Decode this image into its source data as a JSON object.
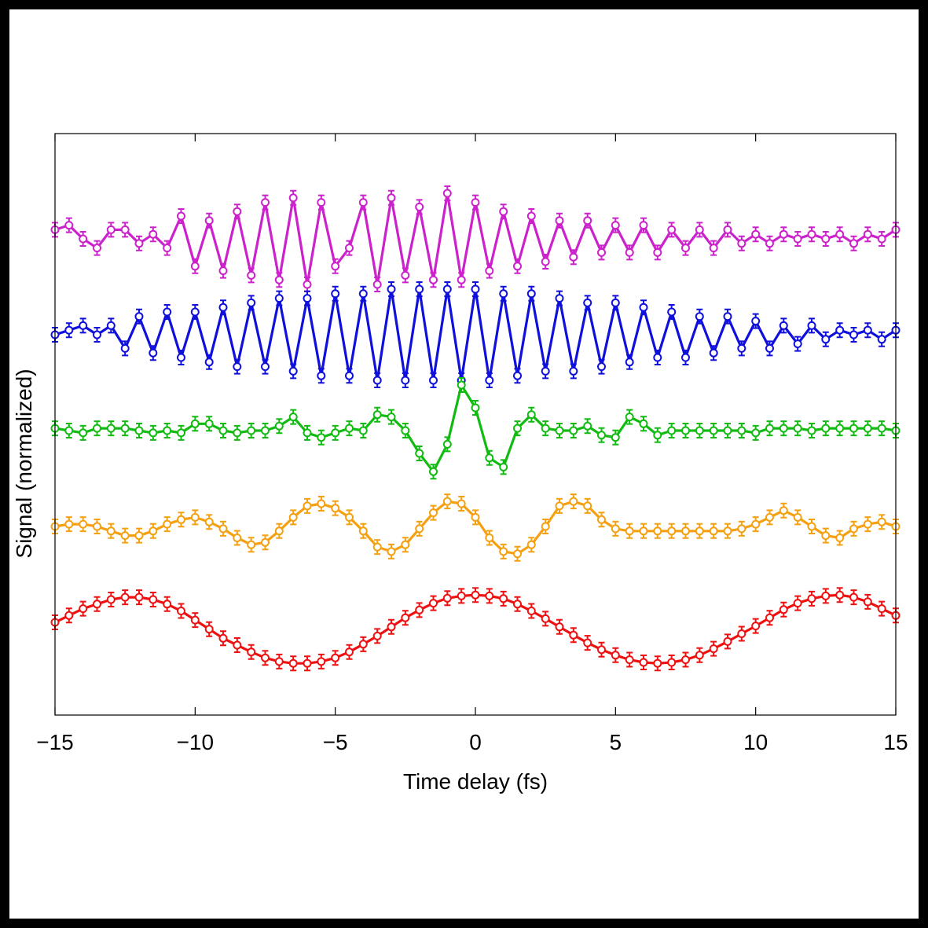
{
  "chart_data": {
    "type": "line",
    "xlabel": "Time delay (fs)",
    "ylabel": "Signal (normalized)",
    "xlim": [
      -15,
      15
    ],
    "xticks": [
      -15,
      -10,
      -5,
      0,
      5,
      10,
      15
    ],
    "xtick_labels": [
      "−15",
      "−10",
      "−5",
      "0",
      "5",
      "10",
      "15"
    ],
    "grid": false,
    "legend": "none",
    "markers": "open circles with error bars",
    "series": [
      {
        "color": "#cc22cc",
        "offset": 4,
        "x": [
          -15,
          -14.5,
          -14,
          -13.5,
          -13,
          -12.5,
          -12,
          -11.5,
          -11,
          -10.5,
          -10,
          -9.5,
          -9,
          -8.5,
          -8,
          -7.5,
          -7,
          -6.5,
          -6,
          -5.5,
          -5,
          -4.5,
          -4,
          -3.5,
          -3,
          -2.5,
          -2,
          -1.5,
          -1,
          -0.5,
          0,
          0.5,
          1,
          1.5,
          2,
          2.5,
          3,
          3.5,
          4,
          4.5,
          5,
          5.5,
          6,
          6.5,
          7,
          7.5,
          8,
          8.5,
          9,
          9.5,
          10,
          10.5,
          11,
          11.5,
          12,
          12.5,
          13,
          13.5,
          14,
          14.5,
          15
        ],
        "y": [
          0.2,
          0.3,
          0.0,
          -0.2,
          0.2,
          0.2,
          -0.1,
          0.1,
          -0.2,
          0.5,
          -0.6,
          0.4,
          -0.7,
          0.6,
          -0.8,
          0.8,
          -0.9,
          0.9,
          -1.0,
          0.8,
          -0.6,
          -0.2,
          0.8,
          -1.0,
          0.9,
          -0.8,
          0.7,
          -0.9,
          1.0,
          -0.9,
          0.8,
          -0.7,
          0.6,
          -0.6,
          0.5,
          -0.5,
          0.4,
          -0.4,
          0.4,
          -0.3,
          0.3,
          -0.3,
          0.3,
          -0.3,
          0.2,
          -0.2,
          0.2,
          -0.2,
          0.2,
          -0.1,
          0.1,
          -0.1,
          0.1,
          0.0,
          0.1,
          0.0,
          0.1,
          -0.1,
          0.1,
          0.0,
          0.2
        ]
      },
      {
        "color": "#1010dd",
        "offset": 3,
        "x": [
          -15,
          -14.5,
          -14,
          -13.5,
          -13,
          -12.5,
          -12,
          -11.5,
          -11,
          -10.5,
          -10,
          -9.5,
          -9,
          -8.5,
          -8,
          -7.5,
          -7,
          -6.5,
          -6,
          -5.5,
          -5,
          -4.5,
          -4,
          -3.5,
          -3,
          -2.5,
          -2,
          -1.5,
          -1,
          -0.5,
          0,
          0.5,
          1,
          1.5,
          2,
          2.5,
          3,
          3.5,
          4,
          4.5,
          5,
          5.5,
          6,
          6.5,
          7,
          7.5,
          8,
          8.5,
          9,
          9.5,
          10,
          10.5,
          11,
          11.5,
          12,
          12.5,
          13,
          13.5,
          14,
          14.5,
          15
        ],
        "y": [
          0.0,
          0.1,
          0.2,
          0.0,
          0.2,
          -0.3,
          0.4,
          -0.4,
          0.5,
          -0.5,
          0.5,
          -0.6,
          0.6,
          -0.7,
          0.7,
          -0.7,
          0.8,
          -0.8,
          0.8,
          -0.9,
          0.9,
          -0.9,
          0.9,
          -1.0,
          1.0,
          -1.0,
          1.0,
          -1.0,
          1.0,
          -1.0,
          1.0,
          -1.0,
          0.9,
          -0.9,
          0.9,
          -0.8,
          0.8,
          -0.8,
          0.7,
          -0.7,
          0.7,
          -0.6,
          0.6,
          -0.5,
          0.5,
          -0.5,
          0.4,
          -0.4,
          0.4,
          -0.3,
          0.3,
          -0.3,
          0.2,
          -0.2,
          0.2,
          -0.1,
          0.1,
          0.0,
          0.1,
          -0.1,
          0.1
        ]
      },
      {
        "color": "#11bb11",
        "offset": 2,
        "x": [
          -15,
          -14.5,
          -14,
          -13.5,
          -13,
          -12.5,
          -12,
          -11.5,
          -11,
          -10.5,
          -10,
          -9.5,
          -9,
          -8.5,
          -8,
          -7.5,
          -7,
          -6.5,
          -6,
          -5.5,
          -5,
          -4.5,
          -4,
          -3.5,
          -3,
          -2.5,
          -2,
          -1.5,
          -1,
          -0.5,
          0,
          0.5,
          1,
          1.5,
          2,
          2.5,
          3,
          3.5,
          4,
          4.5,
          5,
          5.5,
          6,
          6.5,
          7,
          7.5,
          8,
          8.5,
          9,
          9.5,
          10,
          10.5,
          11,
          11.5,
          12,
          12.5,
          13,
          13.5,
          14,
          14.5,
          15
        ],
        "y": [
          0.05,
          0.0,
          -0.05,
          0.05,
          0.05,
          0.05,
          0.0,
          -0.05,
          0.0,
          -0.05,
          0.15,
          0.15,
          0.0,
          -0.05,
          0.0,
          0.0,
          0.1,
          0.3,
          -0.05,
          -0.15,
          -0.05,
          0.05,
          0.0,
          0.35,
          0.3,
          0.0,
          -0.5,
          -0.9,
          -0.3,
          1.0,
          0.5,
          -0.6,
          -0.8,
          0.05,
          0.35,
          0.05,
          0.0,
          0.0,
          0.1,
          -0.1,
          -0.15,
          0.3,
          0.15,
          -0.1,
          0.0,
          0.0,
          0.0,
          0.0,
          0.0,
          0.0,
          -0.05,
          0.05,
          0.05,
          0.05,
          0.0,
          0.05,
          0.05,
          0.05,
          0.05,
          0.05,
          0.0
        ]
      },
      {
        "color": "#f5a010",
        "offset": 1,
        "x": [
          -15,
          -14.5,
          -14,
          -13.5,
          -13,
          -12.5,
          -12,
          -11.5,
          -11,
          -10.5,
          -10,
          -9.5,
          -9,
          -8.5,
          -8,
          -7.5,
          -7,
          -6.5,
          -6,
          -5.5,
          -5,
          -4.5,
          -4,
          -3.5,
          -3,
          -2.5,
          -2,
          -1.5,
          -1,
          -0.5,
          0,
          0.5,
          1,
          1.5,
          2,
          2.5,
          3,
          3.5,
          4,
          4.5,
          5,
          5.5,
          6,
          6.5,
          7,
          7.5,
          8,
          8.5,
          9,
          9.5,
          10,
          10.5,
          11,
          11.5,
          12,
          12.5,
          13,
          13.5,
          14,
          14.5,
          15
        ],
        "y": [
          0.0,
          0.05,
          0.05,
          0.0,
          -0.1,
          -0.2,
          -0.2,
          -0.1,
          0.05,
          0.15,
          0.2,
          0.1,
          -0.05,
          -0.25,
          -0.4,
          -0.35,
          -0.1,
          0.2,
          0.45,
          0.5,
          0.4,
          0.2,
          -0.1,
          -0.45,
          -0.55,
          -0.4,
          -0.05,
          0.3,
          0.55,
          0.5,
          0.2,
          -0.25,
          -0.55,
          -0.6,
          -0.4,
          0.0,
          0.45,
          0.55,
          0.45,
          0.15,
          -0.05,
          -0.1,
          -0.1,
          -0.1,
          -0.1,
          -0.1,
          -0.1,
          -0.1,
          -0.1,
          -0.05,
          0.05,
          0.2,
          0.35,
          0.2,
          0.0,
          -0.2,
          -0.25,
          -0.05,
          0.05,
          0.1,
          0.0
        ]
      },
      {
        "color": "#ee1111",
        "offset": 0,
        "x": [
          -15,
          -14.5,
          -14,
          -13.5,
          -13,
          -12.5,
          -12,
          -11.5,
          -11,
          -10.5,
          -10,
          -9.5,
          -9,
          -8.5,
          -8,
          -7.5,
          -7,
          -6.5,
          -6,
          -5.5,
          -5,
          -4.5,
          -4,
          -3.5,
          -3,
          -2.5,
          -2,
          -1.5,
          -1,
          -0.5,
          0,
          0.5,
          1,
          1.5,
          2,
          2.5,
          3,
          3.5,
          4,
          4.5,
          5,
          5.5,
          6,
          6.5,
          7,
          7.5,
          8,
          8.5,
          9,
          9.5,
          10,
          10.5,
          11,
          11.5,
          12,
          12.5,
          13,
          13.5,
          14,
          14.5,
          15
        ],
        "y": [
          0.0,
          0.15,
          0.3,
          0.4,
          0.5,
          0.55,
          0.55,
          0.5,
          0.4,
          0.25,
          0.05,
          -0.15,
          -0.35,
          -0.5,
          -0.65,
          -0.78,
          -0.86,
          -0.9,
          -0.9,
          -0.86,
          -0.78,
          -0.65,
          -0.48,
          -0.3,
          -0.1,
          0.1,
          0.27,
          0.42,
          0.53,
          0.58,
          0.6,
          0.58,
          0.52,
          0.4,
          0.25,
          0.08,
          -0.1,
          -0.28,
          -0.45,
          -0.6,
          -0.72,
          -0.82,
          -0.88,
          -0.9,
          -0.88,
          -0.82,
          -0.72,
          -0.58,
          -0.42,
          -0.25,
          -0.08,
          0.1,
          0.28,
          0.42,
          0.52,
          0.58,
          0.6,
          0.55,
          0.45,
          0.3,
          0.15
        ]
      }
    ]
  }
}
